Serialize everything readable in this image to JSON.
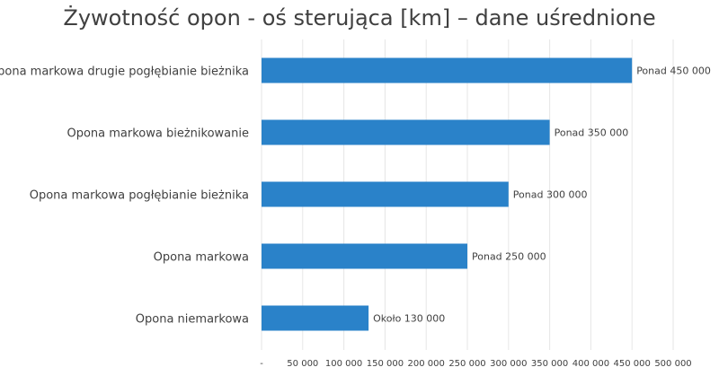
{
  "chart_data": {
    "type": "bar",
    "orientation": "horizontal",
    "title": "Żywotność opon - oś sterująca [km] – dane uśrednione",
    "categories": [
      "Opona markowa drugie pogłębianie bieżnika",
      "Opona markowa bieżnikowanie",
      "Opona markowa pogłębianie bieżnika",
      "Opona markowa",
      "Opona niemarkowa"
    ],
    "values": [
      450000,
      350000,
      300000,
      250000,
      130000
    ],
    "data_labels": [
      "Ponad  450 000",
      "Ponad  350 000",
      "Ponad  300 000",
      "Ponad  250 000",
      "Około  130 000"
    ],
    "x_ticks": [
      0,
      50000,
      100000,
      150000,
      200000,
      250000,
      300000,
      350000,
      400000,
      450000,
      500000
    ],
    "x_tick_labels": [
      "-",
      "50 000",
      "100 000",
      "150 000",
      "200 000",
      "250 000",
      "300 000",
      "350 000",
      "400 000",
      "450 000",
      "500 000"
    ],
    "xlim": [
      0,
      500000
    ],
    "grid": true,
    "legend": "none",
    "colors": {
      "bar": "#2a82c9",
      "grid": "#e6e6e6",
      "text": "#404040"
    }
  }
}
